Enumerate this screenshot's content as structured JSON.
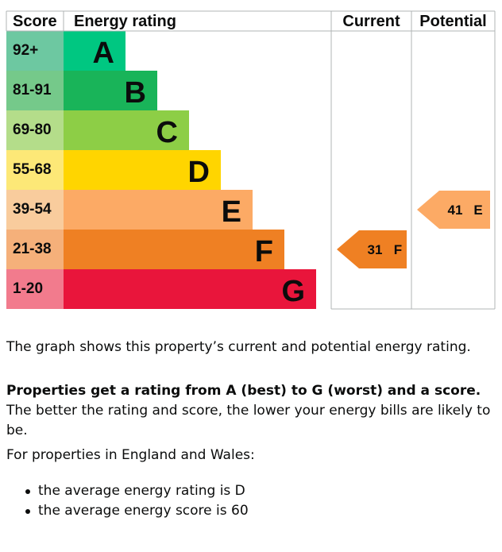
{
  "chart_data": {
    "type": "table",
    "headers": {
      "score": "Score",
      "rating": "Energy rating",
      "current": "Current",
      "potential": "Potential"
    },
    "bands": [
      {
        "score": "92+",
        "letter": "A",
        "band_color": "#00c781",
        "score_color": "#6dc8a1"
      },
      {
        "score": "81-91",
        "letter": "B",
        "band_color": "#19b459",
        "score_color": "#75c98a"
      },
      {
        "score": "69-80",
        "letter": "C",
        "band_color": "#8dce46",
        "score_color": "#b4dd8a"
      },
      {
        "score": "55-68",
        "letter": "D",
        "band_color": "#ffd500",
        "score_color": "#fde877"
      },
      {
        "score": "39-54",
        "letter": "E",
        "band_color": "#fcaa65",
        "score_color": "#f9cc9d"
      },
      {
        "score": "21-38",
        "letter": "F",
        "band_color": "#ef8023",
        "score_color": "#f5b07a"
      },
      {
        "score": "1-20",
        "letter": "G",
        "band_color": "#e9153b",
        "score_color": "#f27b8d"
      }
    ],
    "current": {
      "score": 31,
      "letter": "F",
      "band": "F",
      "color": "#ef8023"
    },
    "potential": {
      "score": 41,
      "letter": "E",
      "band": "E",
      "color": "#fcaa65"
    }
  },
  "text": {
    "intro": "The graph shows this property’s current and potential energy rating.",
    "bold_lead": "Properties get a rating from A (best) to G (worst) and a score.",
    "rest_lead": " The better the rating and score, the lower your energy bills are likely to be.",
    "region": "For properties in England and Wales:",
    "bullet1": "the average energy rating is D",
    "bullet2": "the average energy score is 60"
  }
}
